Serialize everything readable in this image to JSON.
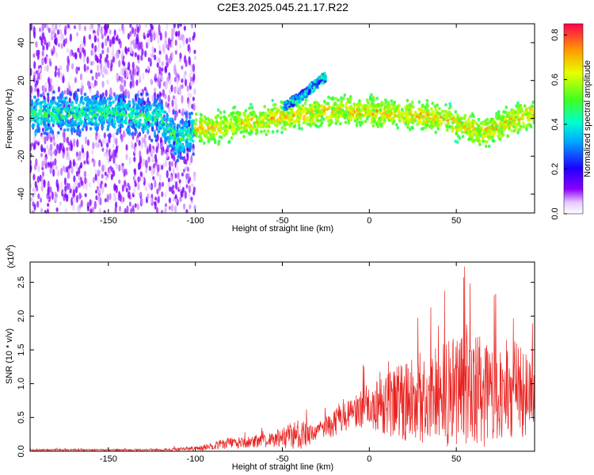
{
  "title": "C2E3.2025.045.21.17.R22",
  "colors": {
    "snr_line": "#e8221f",
    "axis": "#000000"
  },
  "chart_data": [
    {
      "type": "heatmap",
      "xlabel": "Height of straight line (km)",
      "ylabel": "Frequency (Hz)",
      "xlim": [
        -195,
        95
      ],
      "ylim": [
        -50,
        50
      ],
      "x_ticks": [
        -150,
        -100,
        -50,
        0,
        50
      ],
      "y_ticks": [
        -40,
        -20,
        0,
        20,
        40
      ],
      "colorbar": {
        "label": "Normalized spectral amplitude",
        "range": [
          0.0,
          0.85
        ],
        "ticks": [
          "0.0",
          "0.2",
          "0.4",
          "0.6",
          "0.8"
        ],
        "colormap": "rainbow (white-violet-blue-cyan-green-yellow-red)"
      },
      "ridge_center_hz": [
        {
          "x": -190,
          "y": 2
        },
        {
          "x": -150,
          "y": 3
        },
        {
          "x": -120,
          "y": 0
        },
        {
          "x": -110,
          "y": -12
        },
        {
          "x": -100,
          "y": -6
        },
        {
          "x": -80,
          "y": -4
        },
        {
          "x": -60,
          "y": 0
        },
        {
          "x": -40,
          "y": 2
        },
        {
          "x": -20,
          "y": 4
        },
        {
          "x": 0,
          "y": 3
        },
        {
          "x": 20,
          "y": 2
        },
        {
          "x": 40,
          "y": 0
        },
        {
          "x": 55,
          "y": -4
        },
        {
          "x": 65,
          "y": -8
        },
        {
          "x": 80,
          "y": -2
        },
        {
          "x": 93,
          "y": 2
        }
      ],
      "upper_branch_hz": [
        {
          "x": -50,
          "y": 6
        },
        {
          "x": -40,
          "y": 11
        },
        {
          "x": -32,
          "y": 17
        },
        {
          "x": -25,
          "y": 22
        }
      ]
    },
    {
      "type": "line",
      "xlabel": "Height of straight line (km)",
      "ylabel": "SNR (10 * v/v)",
      "y_scale_label": "(x10",
      "y_scale_exp": "4",
      "xlim": [
        -195,
        95
      ],
      "ylim": [
        0.0,
        2.8
      ],
      "x_ticks": [
        -150,
        -100,
        -50,
        0,
        50
      ],
      "y_ticks": [
        "0.0",
        "0.5",
        "1.0",
        "1.5",
        "2.0",
        "2.5"
      ],
      "envelope_x1e4": [
        {
          "x": -195,
          "mean": 0.02,
          "peak": 0.05
        },
        {
          "x": -120,
          "mean": 0.02,
          "peak": 0.05
        },
        {
          "x": -100,
          "mean": 0.04,
          "peak": 0.12
        },
        {
          "x": -80,
          "mean": 0.12,
          "peak": 0.3
        },
        {
          "x": -60,
          "mean": 0.15,
          "peak": 0.35
        },
        {
          "x": -40,
          "mean": 0.25,
          "peak": 0.75
        },
        {
          "x": -30,
          "mean": 0.25,
          "peak": 0.55
        },
        {
          "x": -20,
          "mean": 0.45,
          "peak": 0.95
        },
        {
          "x": -10,
          "mean": 0.6,
          "peak": 1.2
        },
        {
          "x": 0,
          "mean": 0.65,
          "peak": 1.35
        },
        {
          "x": 15,
          "mean": 0.7,
          "peak": 1.9
        },
        {
          "x": 30,
          "mean": 0.8,
          "peak": 2.3
        },
        {
          "x": 45,
          "mean": 0.85,
          "peak": 2.6
        },
        {
          "x": 55,
          "mean": 0.95,
          "peak": 2.8
        },
        {
          "x": 65,
          "mean": 0.85,
          "peak": 2.7
        },
        {
          "x": 75,
          "mean": 0.85,
          "peak": 2.3
        },
        {
          "x": 85,
          "mean": 0.9,
          "peak": 2.6
        },
        {
          "x": 95,
          "mean": 0.8,
          "peak": 1.8
        }
      ]
    }
  ]
}
